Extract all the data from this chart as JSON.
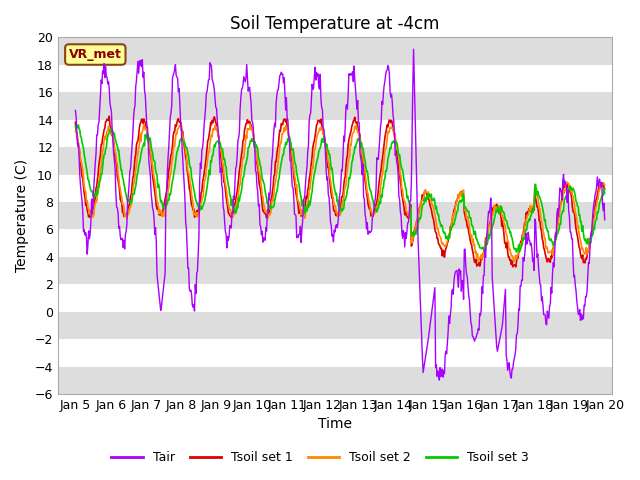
{
  "title": "Soil Temperature at -4cm",
  "xlabel": "Time",
  "ylabel": "Temperature (C)",
  "ylim": [
    -6,
    20
  ],
  "yticks": [
    -6,
    -4,
    -2,
    0,
    2,
    4,
    6,
    8,
    10,
    12,
    14,
    16,
    18,
    20
  ],
  "xlim_days": [
    4.5,
    20.2
  ],
  "xtick_days": [
    5,
    6,
    7,
    8,
    9,
    10,
    11,
    12,
    13,
    14,
    15,
    16,
    17,
    18,
    19,
    20
  ],
  "xtick_labels": [
    "Jan 5",
    "Jan 6",
    "Jan 7",
    "Jan 8",
    "Jan 9",
    "Jan 10",
    "Jan 11",
    "Jan 12",
    "Jan 13",
    "Jan 14",
    "Jan 15",
    "Jan 16",
    "Jan 17",
    "Jan 18",
    "Jan 19",
    "Jan 20"
  ],
  "colors": {
    "Tair": "#aa00ff",
    "Tsoil1": "#dd0000",
    "Tsoil2": "#ff8800",
    "Tsoil3": "#00cc00"
  },
  "legend_labels": [
    "Tair",
    "Tsoil set 1",
    "Tsoil set 2",
    "Tsoil set 3"
  ],
  "site_label": "VR_met",
  "bg_color": "#ffffff",
  "band_color": "#dddddd",
  "title_fontsize": 12,
  "axis_fontsize": 10,
  "tick_fontsize": 9
}
